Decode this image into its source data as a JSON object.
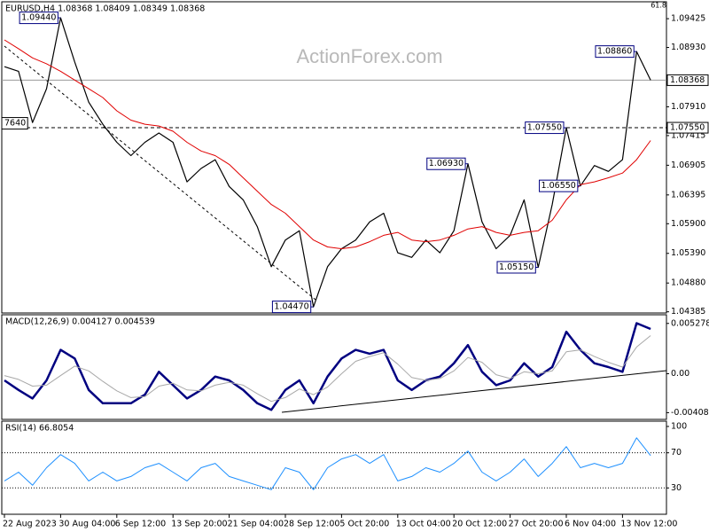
{
  "watermark": "ActionForex.com",
  "corner_label": "61.8",
  "chart_data": [
    {
      "type": "line",
      "title": "EURUSD,H4  1.08368 1.08409 1.08349 1.08368",
      "ylim": [
        1.0438,
        1.0967
      ],
      "yticks": [
        1.09425,
        {
          "value": 1.0893,
          "label": "1.08930"
        },
        {
          "value": 1.0791,
          "label": "1.07910"
        },
        1.07415,
        1.06905,
        1.06395,
        {
          "value": 1.059,
          "label": "1.05900"
        },
        {
          "value": 1.0539,
          "label": "1.05390"
        },
        {
          "value": 1.0488,
          "label": "1.04880"
        },
        1.04385
      ],
      "levels": [
        {
          "value": 1.08368,
          "label": "1.08368",
          "style": "solid"
        },
        {
          "value": 1.0755,
          "label": "1.07550",
          "style": "dashed"
        }
      ],
      "left_label": "7640",
      "annotations": [
        {
          "value": 1.0944,
          "label": "1.09440"
        },
        {
          "value": 1.0755,
          "label": "1.07550"
        },
        {
          "value": 1.0693,
          "label": "1.06930"
        },
        {
          "value": 1.0655,
          "label": "1.06550"
        },
        {
          "value": 1.0515,
          "label": "1.05150"
        },
        {
          "value": 1.0447,
          "label": "1.04470"
        },
        {
          "value": 1.0886,
          "label": "1.08860"
        }
      ],
      "series": [
        {
          "color": "#000000",
          "width": 1.2,
          "values": [
            1.086,
            1.0852,
            1.0764,
            1.0822,
            1.0944,
            1.0868,
            1.0799,
            1.0761,
            1.073,
            1.0707,
            1.073,
            1.0746,
            1.073,
            1.0662,
            1.0685,
            1.07,
            1.0654,
            1.0631,
            1.0585,
            1.0516,
            1.0562,
            1.0578,
            1.0447,
            1.0516,
            1.0547,
            1.0562,
            1.0593,
            1.0608,
            1.054,
            1.0532,
            1.0562,
            1.054,
            1.0578,
            1.0693,
            1.0593,
            1.0547,
            1.057,
            1.0631,
            1.0515,
            1.0623,
            1.0755,
            1.0655,
            1.069,
            1.068,
            1.07,
            1.0886,
            1.08368
          ]
        },
        {
          "color": "#e00000",
          "width": 1,
          "values": [
            1.0906,
            1.0891,
            1.0875,
            1.0865,
            1.0852,
            1.0837,
            1.0822,
            1.0807,
            1.0784,
            1.0768,
            1.0761,
            1.0758,
            1.0749,
            1.073,
            1.0715,
            1.0707,
            1.0692,
            1.0669,
            1.0646,
            1.0623,
            1.0608,
            1.0585,
            1.0562,
            1.055,
            1.0547,
            1.055,
            1.0559,
            1.057,
            1.0575,
            1.0562,
            1.0559,
            1.0562,
            1.057,
            1.0581,
            1.0585,
            1.0575,
            1.057,
            1.0575,
            1.0578,
            1.0596,
            1.0631,
            1.0657,
            1.0662,
            1.0669,
            1.0677,
            1.07,
            1.0733
          ]
        }
      ]
    },
    {
      "type": "line",
      "title": "MACD(12,26,9) 0.004127 0.004539",
      "ylim": [
        -0.0047,
        0.006
      ],
      "yticks": [
        0.005278,
        {
          "value": 0,
          "label": "0.00"
        },
        -0.004087
      ],
      "series": [
        {
          "color": "#000080",
          "width": 2.5,
          "values": [
            -0.0007,
            -0.0017,
            -0.0026,
            -0.0007,
            0.0025,
            0.0016,
            -0.0017,
            -0.0031,
            -0.0031,
            -0.0031,
            -0.0022,
            0.0002,
            -0.0012,
            -0.0026,
            -0.0017,
            -0.0003,
            -0.0007,
            -0.0017,
            -0.0031,
            -0.0038,
            -0.0017,
            -0.0007,
            -0.0031,
            -0.0003,
            0.0016,
            0.0025,
            0.0021,
            0.0025,
            -0.0007,
            -0.0017,
            -0.0007,
            -0.0003,
            0.0011,
            0.003,
            0.0002,
            -0.0012,
            -0.0007,
            0.0011,
            -0.0003,
            0.0007,
            0.0044,
            0.0025,
            0.0011,
            0.0007,
            0.0002,
            0.0053,
            0.0047
          ]
        },
        {
          "color": "#a8a8a8",
          "width": 1,
          "values": [
            -0.0002,
            -0.0006,
            -0.0013,
            -0.0012,
            -0.0002,
            0.0008,
            0.0003,
            -0.0008,
            -0.0018,
            -0.0025,
            -0.0024,
            -0.0013,
            -0.001,
            -0.0017,
            -0.0018,
            -0.0012,
            -0.0009,
            -0.0012,
            -0.0021,
            -0.0029,
            -0.0025,
            -0.0016,
            -0.0022,
            -0.0014,
            0.0,
            0.0013,
            0.0018,
            0.0022,
            0.001,
            -0.0004,
            -0.0007,
            -0.0005,
            0.0003,
            0.0017,
            0.0012,
            -0.0001,
            -0.0005,
            0.0002,
            0.0,
            0.0003,
            0.0023,
            0.0025,
            0.0018,
            0.0012,
            0.0007,
            0.0028,
            0.004
          ]
        }
      ]
    },
    {
      "type": "line",
      "title": "RSI(14) 66.8054",
      "ylim": [
        0,
        104
      ],
      "yticks": [
        100,
        70,
        30
      ],
      "levels": [
        {
          "value": 70,
          "style": "dotted"
        },
        {
          "value": 30,
          "style": "dotted"
        }
      ],
      "categories": [
        "22 Aug 2023",
        null,
        null,
        null,
        "30 Aug 04:00",
        null,
        null,
        null,
        "6 Sep 12:00",
        null,
        null,
        null,
        "13 Sep 20:00",
        null,
        null,
        null,
        "21 Sep 04:00",
        null,
        null,
        null,
        "28 Sep 12:00",
        null,
        null,
        null,
        "5 Oct 20:00",
        null,
        null,
        null,
        "13 Oct 04:00",
        null,
        null,
        null,
        "20 Oct 12:00",
        null,
        null,
        null,
        "27 Oct 20:00",
        null,
        null,
        null,
        "6 Nov 04:00",
        null,
        null,
        null,
        "13 Nov 12:00",
        null,
        null
      ],
      "series": [
        {
          "color": "#1e90ff",
          "width": 1,
          "values": [
            38,
            48,
            33,
            53,
            68,
            58,
            38,
            48,
            38,
            43,
            53,
            58,
            48,
            38,
            53,
            58,
            43,
            38,
            33,
            28,
            53,
            48,
            28,
            53,
            63,
            68,
            58,
            68,
            38,
            43,
            53,
            48,
            58,
            72,
            48,
            38,
            48,
            63,
            43,
            58,
            77,
            53,
            58,
            53,
            58,
            87,
            66.8054
          ]
        }
      ]
    }
  ]
}
